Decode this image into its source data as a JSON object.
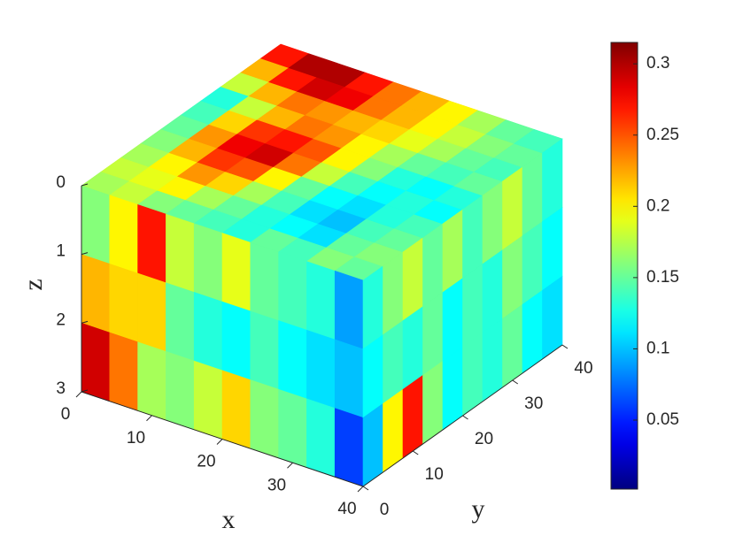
{
  "chart_data": {
    "type": "voxel",
    "xlabel": "x",
    "ylabel": "y",
    "zlabel": "z",
    "xlim": [
      0,
      40
    ],
    "ylim": [
      0,
      40
    ],
    "zlim": [
      0,
      3
    ],
    "xticks": [
      0,
      10,
      20,
      30,
      40
    ],
    "yticks": [
      0,
      10,
      20,
      30,
      40
    ],
    "zticks": [
      0,
      1,
      2,
      3
    ],
    "colormap": "jet",
    "clim": [
      0.0016,
      0.315
    ],
    "cticks": [
      0.05,
      0.1,
      0.15,
      0.2,
      0.25,
      0.3
    ],
    "wall_color": "#00007f",
    "faces": {
      "top": [
        [
          0.17,
          0.18,
          0.16,
          0.15,
          0.14,
          0.13,
          0.15,
          0.14,
          0.16,
          0.15
        ],
        [
          0.18,
          0.19,
          0.2,
          0.17,
          0.15,
          0.13,
          0.12,
          0.11,
          0.15,
          0.16
        ],
        [
          0.17,
          0.2,
          0.23,
          0.21,
          0.17,
          0.14,
          0.11,
          0.1,
          0.14,
          0.15
        ],
        [
          0.16,
          0.22,
          0.26,
          0.25,
          0.2,
          0.15,
          0.12,
          0.11,
          0.13,
          0.14
        ],
        [
          0.15,
          0.23,
          0.28,
          0.29,
          0.24,
          0.18,
          0.14,
          0.12,
          0.13,
          0.12
        ],
        [
          0.14,
          0.21,
          0.26,
          0.27,
          0.25,
          0.2,
          0.16,
          0.13,
          0.12,
          0.13
        ],
        [
          0.13,
          0.18,
          0.22,
          0.24,
          0.23,
          0.2,
          0.17,
          0.15,
          0.14,
          0.15
        ],
        [
          0.18,
          0.22,
          0.24,
          0.23,
          0.22,
          0.21,
          0.19,
          0.17,
          0.15,
          0.14
        ],
        [
          0.22,
          0.27,
          0.29,
          0.28,
          0.24,
          0.22,
          0.2,
          0.18,
          0.16,
          0.15
        ],
        [
          0.27,
          0.3,
          0.3,
          0.27,
          0.24,
          0.22,
          0.2,
          0.17,
          0.15,
          0.14
        ]
      ],
      "front": [
        [
          0.16,
          0.2,
          0.27,
          0.18,
          0.16,
          0.19,
          0.15,
          0.14,
          0.13,
          0.09
        ],
        [
          0.22,
          0.21,
          0.21,
          0.15,
          0.13,
          0.12,
          0.14,
          0.12,
          0.11,
          0.1
        ],
        [
          0.29,
          0.24,
          0.17,
          0.16,
          0.18,
          0.21,
          0.16,
          0.15,
          0.13,
          0.06
        ]
      ],
      "right": [
        [
          0.13,
          0.16,
          0.18,
          0.15,
          0.17,
          0.14,
          0.16,
          0.18,
          0.15,
          0.13
        ],
        [
          0.12,
          0.14,
          0.13,
          0.15,
          0.12,
          0.14,
          0.13,
          0.16,
          0.14,
          0.12
        ],
        [
          0.1,
          0.2,
          0.27,
          0.16,
          0.12,
          0.14,
          0.13,
          0.15,
          0.12,
          0.11
        ]
      ]
    }
  }
}
